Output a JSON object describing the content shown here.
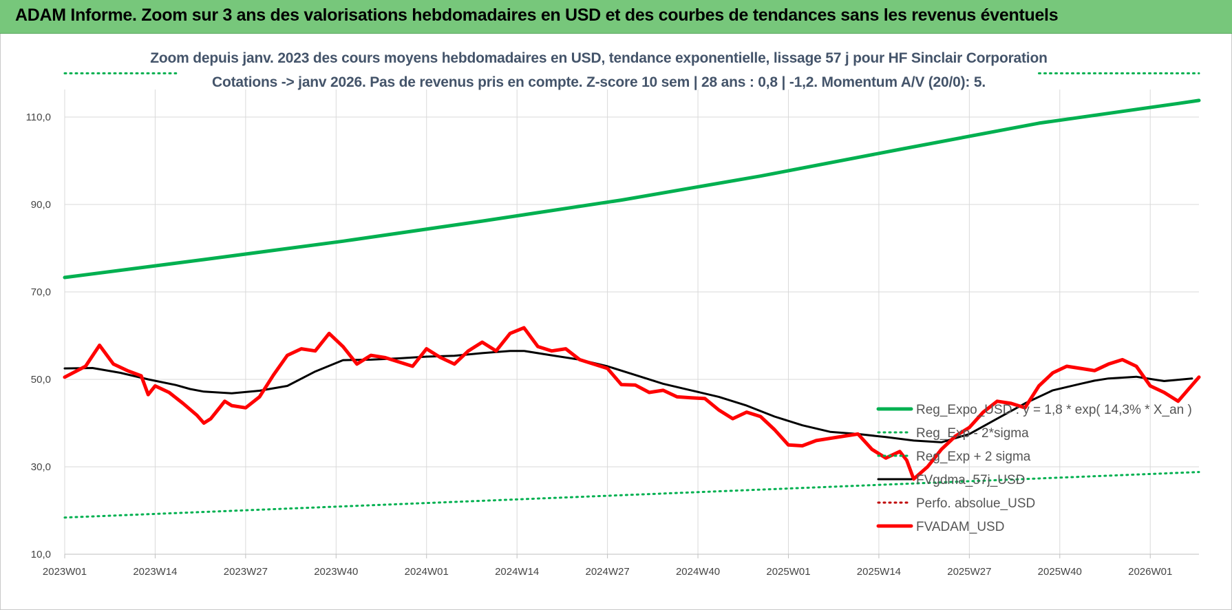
{
  "banner": {
    "title": "ADAM Informe. Zoom sur 3 ans des valorisations hebdomadaires en USD et des courbes de tendances sans les revenus éventuels"
  },
  "chart_data": {
    "type": "line",
    "title": "Zoom depuis janv. 2023 des cours moyens hebdomadaires en USD, tendance exponentielle, lissage 57 j pour HF Sinclair Corporation",
    "subtitle": "Cotations -> janv 2026. Pas de revenus pris en compte. Z-score 10 sem | 28 ans : 0,8 | -1,2. Momentum A/V (20/0): 5.",
    "xlabel": "",
    "ylabel": "",
    "x_range": [
      0,
      163
    ],
    "ylim": [
      10,
      115
    ],
    "y_ticks": [
      10,
      30,
      50,
      70,
      90,
      110
    ],
    "y_tick_labels": [
      "10,0",
      "30,0",
      "50,0",
      "70,0",
      "90,0",
      "110,0"
    ],
    "x_ticks": [
      0,
      13,
      26,
      39,
      52,
      65,
      78,
      91,
      104,
      117,
      130,
      143,
      156
    ],
    "x_tick_labels": [
      "2023W01",
      "2023W14",
      "2023W27",
      "2023W40",
      "2024W01",
      "2024W14",
      "2024W27",
      "2024W40",
      "2025W01",
      "2025W14",
      "2025W27",
      "2025W40",
      "2026W01"
    ],
    "grid": true,
    "legend_position": "bottom-right",
    "series": [
      {
        "name": "Reg_Expo_USD : y = 1,8 * exp( 14,3% *  X_an )",
        "color": "#00b050",
        "style": "solid-thick",
        "x": [
          0,
          20,
          40,
          60,
          80,
          100,
          120,
          140,
          160,
          163
        ],
        "y": [
          73.3,
          77.4,
          81.6,
          86.2,
          91.0,
          96.5,
          102.6,
          108.6,
          113.1,
          113.8
        ]
      },
      {
        "name": "Reg_Exp - 2*sigma",
        "color": "#00b050",
        "style": "dotted",
        "x": [
          0,
          163
        ],
        "y": [
          18.4,
          28.8
        ]
      },
      {
        "name": "Reg_Exp + 2 sigma",
        "color": "#00b050",
        "style": "dotted",
        "x": [
          0,
          16,
          140,
          163
        ],
        "y": [
          120,
          120,
          120,
          120
        ],
        "gaps": [
          [
            16,
            140
          ]
        ]
      },
      {
        "name": "FVgdma_57j_USD",
        "color": "#000000",
        "style": "solid",
        "x": [
          0,
          4,
          8,
          12,
          16,
          18,
          20,
          24,
          28,
          32,
          36,
          40,
          44,
          48,
          52,
          56,
          60,
          64,
          66,
          70,
          74,
          78,
          82,
          86,
          90,
          94,
          98,
          102,
          106,
          110,
          114,
          118,
          122,
          126,
          130,
          134,
          138,
          142,
          146,
          148,
          150,
          154,
          158,
          162
        ],
        "y": [
          52.5,
          52.6,
          51.5,
          50.0,
          48.7,
          47.8,
          47.2,
          46.8,
          47.4,
          48.5,
          51.8,
          54.4,
          54.5,
          54.8,
          55.2,
          55.4,
          56.0,
          56.5,
          56.5,
          55.5,
          54.5,
          53.0,
          51.0,
          49.0,
          47.5,
          46.0,
          44.0,
          41.5,
          39.5,
          38.0,
          37.5,
          36.8,
          36.0,
          35.6,
          37.5,
          41.0,
          44.5,
          47.5,
          49.0,
          49.7,
          50.2,
          50.6,
          49.6,
          50.2
        ]
      },
      {
        "name": "Perfo. absolue_USD",
        "color": "#c00000",
        "style": "dotted",
        "x": [],
        "y": []
      },
      {
        "name": "FVADAM_USD",
        "color": "#ff0000",
        "style": "solid-thick",
        "x": [
          0,
          3,
          5,
          7,
          9,
          11,
          12,
          13,
          15,
          17,
          19,
          20,
          21,
          22,
          23,
          24,
          26,
          28,
          30,
          32,
          34,
          36,
          38,
          40,
          42,
          44,
          46,
          48,
          50,
          52,
          54,
          56,
          58,
          60,
          62,
          64,
          66,
          68,
          70,
          72,
          74,
          76,
          78,
          80,
          82,
          84,
          86,
          88,
          90,
          92,
          94,
          96,
          98,
          100,
          102,
          104,
          106,
          108,
          110,
          112,
          114,
          116,
          118,
          120,
          121,
          122,
          124,
          126,
          128,
          130,
          132,
          134,
          136,
          138,
          140,
          142,
          144,
          146,
          148,
          150,
          152,
          154,
          156,
          158,
          160,
          163
        ],
        "y": [
          50.5,
          53.0,
          57.8,
          53.5,
          52.0,
          50.8,
          46.5,
          48.5,
          47.0,
          44.5,
          41.8,
          40.0,
          41.0,
          43.0,
          45.0,
          44.0,
          43.5,
          46.0,
          51.0,
          55.5,
          57.0,
          56.5,
          60.5,
          57.5,
          53.5,
          55.5,
          55.0,
          54.0,
          53.0,
          57.0,
          55.0,
          53.5,
          56.5,
          58.5,
          56.5,
          60.5,
          61.8,
          57.5,
          56.5,
          57.0,
          54.5,
          53.5,
          52.5,
          48.8,
          48.7,
          47.0,
          47.5,
          46.0,
          45.8,
          45.6,
          43.0,
          41.0,
          42.5,
          41.5,
          38.5,
          35.0,
          34.8,
          36.0,
          36.5,
          37.0,
          37.5,
          34.0,
          32.0,
          33.5,
          31.5,
          27.2,
          30.0,
          34.0,
          37.0,
          39.0,
          42.5,
          45.0,
          44.5,
          43.5,
          48.5,
          51.5,
          53.0,
          52.5,
          52.0,
          53.5,
          54.5,
          53.0,
          48.5,
          47.0,
          45.0,
          50.5
        ]
      }
    ]
  }
}
